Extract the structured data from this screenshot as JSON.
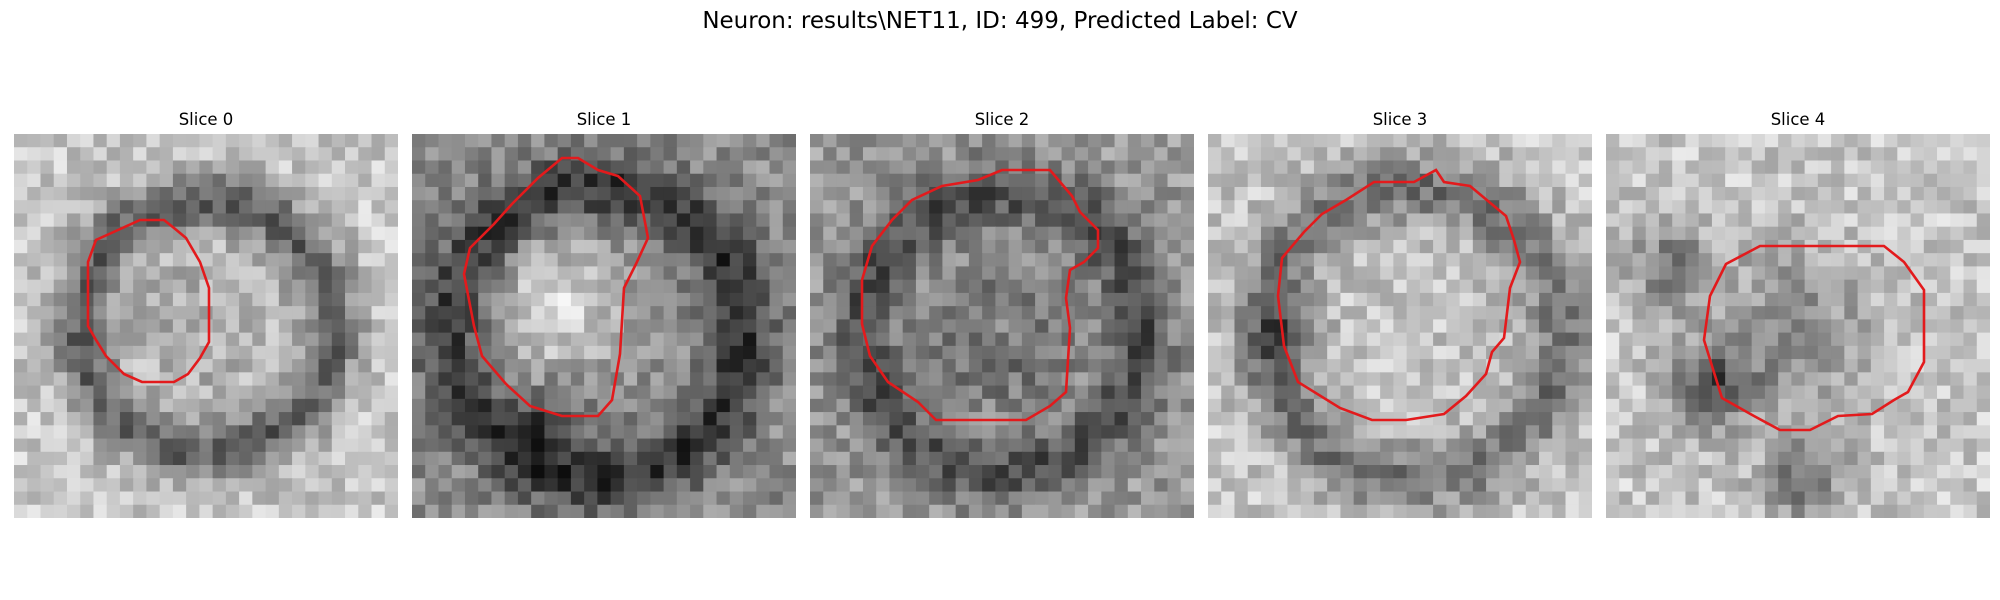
{
  "figure": {
    "title": "Neuron: results\\NET11, ID: 499, Predicted Label: CV"
  },
  "colors": {
    "contour": "#e31a1c",
    "background": "#ffffff"
  },
  "slices": [
    {
      "title": "Slice 0",
      "tone": "ring-dark",
      "seed": 11
    },
    {
      "title": "Slice 1",
      "tone": "bright-blob",
      "seed": 23
    },
    {
      "title": "Slice 2",
      "tone": "dark-ring",
      "seed": 37
    },
    {
      "title": "Slice 3",
      "tone": "soft-ring",
      "seed": 51
    },
    {
      "title": "Slice 4",
      "tone": "dark-cross",
      "seed": 73
    }
  ]
}
